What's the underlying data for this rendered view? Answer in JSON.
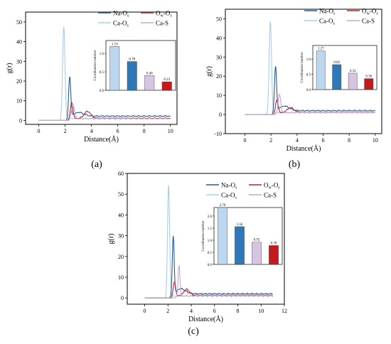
{
  "legend_labels": {
    "naos": {
      "main": "Na-O",
      "sub": "s"
    },
    "owos": {
      "main": "O",
      "sub1": "w",
      "mid": "-O",
      "sub2": "s"
    },
    "caos": {
      "main": "Ca-O",
      "sub": "s"
    },
    "cas": {
      "main": "Ca-S"
    }
  },
  "colors": {
    "naos": "#1f5f99",
    "owos": "#b8282a",
    "caos": "#a9cde8",
    "cas": "#c7a5d6",
    "bar1": "#bcd7ee",
    "bar2": "#2e78b8",
    "bar3": "#d6c4e2",
    "bar4": "#c41a1f"
  },
  "chart_data": [
    {
      "id": "a",
      "type": "line",
      "panel_label": "(a)",
      "xlabel": "Distance(Å)",
      "ylabel": "g(r)",
      "xlim": [
        -1,
        10.5
      ],
      "ylim": [
        -2,
        55
      ],
      "xticks": [
        0,
        2,
        4,
        6,
        8,
        10
      ],
      "yticks": [
        0,
        10,
        20,
        30,
        40,
        50
      ],
      "series": [
        {
          "key": "caos",
          "peaks": [
            [
              1.9,
              47,
              0.09
            ]
          ],
          "tail": 1.0,
          "rise": 1.65
        },
        {
          "key": "naos",
          "peaks": [
            [
              2.35,
              20.5,
              0.08
            ],
            [
              3.0,
              2.0,
              0.4
            ]
          ],
          "tail": 2.2,
          "rise": 2.1
        },
        {
          "key": "owos",
          "peaks": [
            [
              2.5,
              8.5,
              0.1
            ],
            [
              3.7,
              3.5,
              0.25
            ]
          ],
          "tail": 1.1,
          "rise": 2.2
        },
        {
          "key": "cas",
          "peaks": [
            [
              2.6,
              7.5,
              0.12
            ]
          ],
          "tail": 0.9,
          "rise": 2.3
        }
      ],
      "inset": {
        "ylabel": "Coordination number",
        "ylim": [
          0,
          1.35
        ],
        "yticks": [
          0.0,
          0.5,
          1.0
        ],
        "ytick_labels": [
          "0.0",
          "0.5",
          "1.0"
        ],
        "values": [
          1.19,
          0.78,
          0.4,
          0.23
        ],
        "value_labels": [
          "1.19",
          "0.78",
          "0.40",
          "0.23"
        ]
      }
    },
    {
      "id": "b",
      "type": "line",
      "panel_label": "(b)",
      "xlabel": "Distance(Å)",
      "ylabel": "g(r)",
      "xlim": [
        -1.5,
        10.5
      ],
      "ylim": [
        -10,
        55
      ],
      "xticks": [
        0,
        2,
        4,
        6,
        8,
        10
      ],
      "yticks": [
        -10,
        0,
        10,
        20,
        30,
        40,
        50
      ],
      "series": [
        {
          "key": "caos",
          "peaks": [
            [
              1.95,
              48,
              0.09
            ]
          ],
          "tail": 1.0,
          "rise": 1.7
        },
        {
          "key": "naos",
          "peaks": [
            [
              2.35,
              23.5,
              0.08
            ],
            [
              3.0,
              2.5,
              0.4
            ]
          ],
          "tail": 2.0,
          "rise": 2.1
        },
        {
          "key": "owos",
          "peaks": [
            [
              2.45,
              7.0,
              0.1
            ],
            [
              3.5,
              2.5,
              0.25
            ]
          ],
          "tail": 1.1,
          "rise": 2.2
        },
        {
          "key": "cas",
          "peaks": [
            [
              2.65,
              10,
              0.1
            ]
          ],
          "tail": 1.0,
          "rise": 2.35
        }
      ],
      "inset": {
        "ylabel": "Coordination number",
        "ylim": [
          0,
          1.45
        ],
        "yticks": [
          0.0,
          0.5,
          1.0
        ],
        "ytick_labels": [
          "0.0",
          "0.5",
          "1.0"
        ],
        "values": [
          1.27,
          0.82,
          0.54,
          0.36
        ],
        "value_labels": [
          "1.27",
          "0.82",
          "0.54",
          "0.36"
        ]
      }
    },
    {
      "id": "c",
      "type": "line",
      "panel_label": "(c)",
      "xlabel": "Distance(Å)",
      "ylabel": "g(r)",
      "xlim": [
        -1.5,
        12
      ],
      "ylim": [
        -3,
        60
      ],
      "xticks": [
        0,
        2,
        4,
        6,
        8,
        10,
        12
      ],
      "yticks": [
        0,
        10,
        20,
        30,
        40,
        50,
        60
      ],
      "series": [
        {
          "key": "caos",
          "peaks": [
            [
              2.05,
              54,
              0.09
            ]
          ],
          "tail": 1.0,
          "rise": 1.8
        },
        {
          "key": "naos",
          "peaks": [
            [
              2.45,
              28,
              0.08
            ],
            [
              3.1,
              2.5,
              0.4
            ]
          ],
          "tail": 2.0,
          "rise": 2.15
        },
        {
          "key": "owos",
          "peaks": [
            [
              2.55,
              7.0,
              0.1
            ],
            [
              3.6,
              3.0,
              0.25
            ]
          ],
          "tail": 1.2,
          "rise": 2.25
        },
        {
          "key": "cas",
          "peaks": [
            [
              2.95,
              15,
              0.08
            ]
          ],
          "tail": 1.0,
          "rise": 2.6
        }
      ],
      "inset": {
        "ylabel": "Coordination number",
        "ylim": [
          0,
          2.35
        ],
        "yticks": [
          0.0,
          0.5,
          1.0,
          1.5,
          2.0
        ],
        "ytick_labels": [
          "0.0",
          "0.5",
          "1.0",
          "1.5",
          "2.0"
        ],
        "values": [
          2.7,
          1.56,
          0.92,
          0.78
        ],
        "value_labels": [
          "2.70",
          "1.56",
          "0.92",
          "0.78"
        ]
      }
    }
  ]
}
